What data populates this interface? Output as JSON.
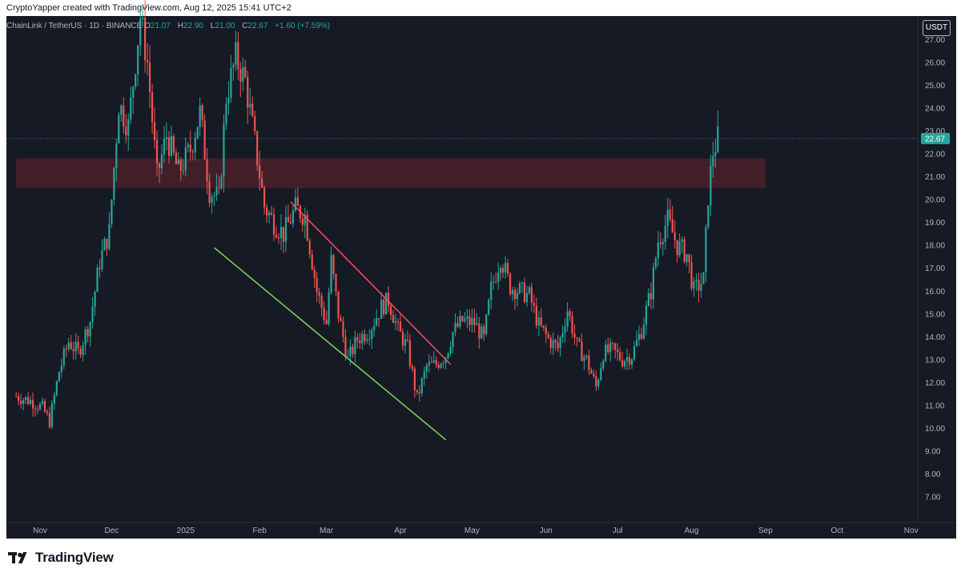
{
  "header": {
    "attribution": "CryptoYapper created with TradingView.com, Aug 12, 2025 15:41 UTC+2"
  },
  "legend": {
    "symbol": "ChainLink / TetherUS · 1D · BINANCE",
    "open_label": "O",
    "open": "21.07",
    "high_label": "H",
    "high": "22.90",
    "low_label": "L",
    "low": "21.00",
    "close_label": "C",
    "close": "22.67",
    "change": "+1.60 (+7.59%)"
  },
  "currency_badge": "USDT",
  "footer": {
    "brand": "TradingView"
  },
  "colors": {
    "background": "#161a25",
    "up": "#26a69a",
    "down": "#ef5350",
    "zone": "#4a2129",
    "support_line": "#7ed957",
    "resistance_line": "#ff4d5e",
    "price_tag": "#26a69a"
  },
  "chart_data": {
    "type": "candlestick",
    "pair": "ChainLink / TetherUS",
    "timeframe": "1D",
    "exchange": "BINANCE",
    "currency": "USDT",
    "y_ticks": [
      "7.00",
      "8.00",
      "9.00",
      "10.00",
      "11.00",
      "12.00",
      "13.00",
      "14.00",
      "15.00",
      "16.00",
      "17.00",
      "18.00",
      "19.00",
      "20.00",
      "21.00",
      "22.00",
      "23.00",
      "24.00",
      "25.00",
      "26.00",
      "27.00"
    ],
    "last_price": "22.67",
    "ylim": [
      6.2,
      28.2
    ],
    "x_labels": [
      {
        "label": "Nov",
        "date": "2024-11-01"
      },
      {
        "label": "Dec",
        "date": "2024-12-01"
      },
      {
        "label": "2025",
        "date": "2025-01-01"
      },
      {
        "label": "Feb",
        "date": "2025-02-01"
      },
      {
        "label": "Mar",
        "date": "2025-03-01"
      },
      {
        "label": "Apr",
        "date": "2025-04-01"
      },
      {
        "label": "May",
        "date": "2025-05-01"
      },
      {
        "label": "Jun",
        "date": "2025-06-01"
      },
      {
        "label": "Jul",
        "date": "2025-07-01"
      },
      {
        "label": "Aug",
        "date": "2025-08-01"
      },
      {
        "label": "Sep",
        "date": "2025-09-01"
      },
      {
        "label": "Oct",
        "date": "2025-10-01"
      },
      {
        "label": "Nov",
        "date": "2025-11-01"
      }
    ],
    "price_path": [
      [
        "2024-10-22",
        11.4
      ],
      [
        "2024-10-28",
        11.2
      ],
      [
        "2024-11-02",
        10.9
      ],
      [
        "2024-11-05",
        10.3
      ],
      [
        "2024-11-09",
        12.5
      ],
      [
        "2024-11-13",
        13.8
      ],
      [
        "2024-11-17",
        13.3
      ],
      [
        "2024-11-22",
        14.7
      ],
      [
        "2024-11-26",
        17.3
      ],
      [
        "2024-11-30",
        18.6
      ],
      [
        "2024-12-04",
        24.2
      ],
      [
        "2024-12-08",
        23.2
      ],
      [
        "2024-12-13",
        28.0
      ],
      [
        "2024-12-16",
        26.0
      ],
      [
        "2024-12-20",
        21.0
      ],
      [
        "2024-12-24",
        22.8
      ],
      [
        "2024-12-29",
        21.2
      ],
      [
        "2025-01-03",
        22.2
      ],
      [
        "2025-01-07",
        23.8
      ],
      [
        "2025-01-11",
        20.4
      ],
      [
        "2025-01-15",
        20.0
      ],
      [
        "2025-01-18",
        24.5
      ],
      [
        "2025-01-22",
        26.2
      ],
      [
        "2025-01-26",
        25.2
      ],
      [
        "2025-01-30",
        22.5
      ],
      [
        "2025-02-03",
        19.7
      ],
      [
        "2025-02-07",
        19.0
      ],
      [
        "2025-02-11",
        18.5
      ],
      [
        "2025-02-16",
        19.6
      ],
      [
        "2025-02-20",
        19.3
      ],
      [
        "2025-02-25",
        16.0
      ],
      [
        "2025-03-01",
        14.6
      ],
      [
        "2025-03-03",
        17.3
      ],
      [
        "2025-03-06",
        15.0
      ],
      [
        "2025-03-10",
        13.0
      ],
      [
        "2025-03-14",
        13.9
      ],
      [
        "2025-03-19",
        14.3
      ],
      [
        "2025-03-24",
        15.3
      ],
      [
        "2025-03-27",
        15.6
      ],
      [
        "2025-03-31",
        14.3
      ],
      [
        "2025-04-04",
        13.5
      ],
      [
        "2025-04-08",
        11.3
      ],
      [
        "2025-04-12",
        12.7
      ],
      [
        "2025-04-16",
        12.8
      ],
      [
        "2025-04-20",
        13.2
      ],
      [
        "2025-04-23",
        14.2
      ],
      [
        "2025-04-27",
        14.7
      ],
      [
        "2025-05-02",
        14.6
      ],
      [
        "2025-05-06",
        13.9
      ],
      [
        "2025-05-09",
        16.1
      ],
      [
        "2025-05-13",
        17.5
      ],
      [
        "2025-05-17",
        16.2
      ],
      [
        "2025-05-21",
        16.0
      ],
      [
        "2025-05-25",
        15.8
      ],
      [
        "2025-05-29",
        14.5
      ],
      [
        "2025-06-02",
        13.9
      ],
      [
        "2025-06-06",
        13.5
      ],
      [
        "2025-06-10",
        15.2
      ],
      [
        "2025-06-14",
        13.6
      ],
      [
        "2025-06-18",
        13.0
      ],
      [
        "2025-06-22",
        11.8
      ],
      [
        "2025-06-25",
        13.3
      ],
      [
        "2025-06-29",
        13.4
      ],
      [
        "2025-07-03",
        13.0
      ],
      [
        "2025-07-07",
        13.2
      ],
      [
        "2025-07-11",
        14.3
      ],
      [
        "2025-07-15",
        16.0
      ],
      [
        "2025-07-18",
        18.2
      ],
      [
        "2025-07-22",
        19.1
      ],
      [
        "2025-07-26",
        18.0
      ],
      [
        "2025-07-30",
        17.6
      ],
      [
        "2025-08-02",
        16.0
      ],
      [
        "2025-08-06",
        16.5
      ],
      [
        "2025-08-08",
        20.2
      ],
      [
        "2025-08-10",
        22.1
      ],
      [
        "2025-08-12",
        22.67
      ]
    ],
    "annotations": [
      {
        "type": "zone",
        "label": "resistance zone",
        "from": "2024-10-22",
        "to": "2025-09-01",
        "y_low": 20.5,
        "y_high": 21.8
      },
      {
        "type": "line",
        "label": "support line",
        "from": [
          "2025-01-13",
          17.9
        ],
        "to": [
          "2025-04-20",
          9.5
        ]
      },
      {
        "type": "line",
        "label": "resistance line",
        "from": [
          "2025-02-14",
          19.9
        ],
        "to": [
          "2025-04-22",
          12.8
        ]
      }
    ],
    "grid": false,
    "legend": "top-left"
  }
}
